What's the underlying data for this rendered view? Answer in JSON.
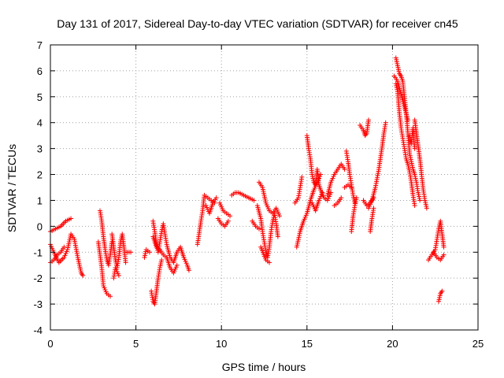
{
  "chart_data": {
    "type": "scatter",
    "title": "Day 131 of 2017, Sidereal Day-to-day VTEC variation (SDTVAR) for receiver cn45",
    "xlabel": "GPS time / hours",
    "ylabel": "SDTVAR / TECUs",
    "xlim": [
      0,
      25
    ],
    "ylim": [
      -4,
      7
    ],
    "xticks": [
      0,
      5,
      10,
      15,
      20,
      25
    ],
    "yticks": [
      -4,
      -3,
      -2,
      -1,
      0,
      1,
      2,
      3,
      4,
      5,
      6,
      7
    ],
    "grid": true,
    "marker": "+",
    "color": "#ff0000",
    "tracks": [
      [
        [
          0.0,
          -0.7
        ],
        [
          0.2,
          -1.0
        ],
        [
          0.5,
          -1.4
        ],
        [
          0.8,
          -1.2
        ],
        [
          1.0,
          -0.9
        ],
        [
          1.2,
          -0.3
        ],
        [
          1.4,
          -0.5
        ],
        [
          1.6,
          -1.2
        ],
        [
          1.8,
          -1.8
        ],
        [
          1.9,
          -1.9
        ]
      ],
      [
        [
          0.0,
          -1.4
        ],
        [
          0.2,
          -1.3
        ],
        [
          0.4,
          -1.1
        ],
        [
          0.6,
          -1.0
        ],
        [
          0.8,
          -0.8
        ]
      ],
      [
        [
          0.0,
          -0.2
        ],
        [
          0.3,
          -0.1
        ],
        [
          0.6,
          0.0
        ],
        [
          0.9,
          0.2
        ],
        [
          1.2,
          0.3
        ]
      ],
      [
        [
          2.8,
          -0.6
        ],
        [
          3.0,
          -1.6
        ],
        [
          3.1,
          -2.3
        ],
        [
          3.3,
          -2.6
        ],
        [
          3.5,
          -2.7
        ]
      ],
      [
        [
          2.9,
          0.6
        ],
        [
          3.0,
          0.2
        ],
        [
          3.1,
          -0.4
        ],
        [
          3.2,
          -0.9
        ],
        [
          3.3,
          -1.3
        ],
        [
          3.4,
          -1.5
        ],
        [
          3.5,
          -1.1
        ],
        [
          3.6,
          -0.6
        ]
      ],
      [
        [
          3.6,
          -0.3
        ],
        [
          3.7,
          -0.8
        ],
        [
          3.8,
          -1.3
        ],
        [
          3.9,
          -1.6
        ],
        [
          4.0,
          -1.2
        ],
        [
          4.1,
          -0.6
        ],
        [
          4.2,
          -0.3
        ],
        [
          4.3,
          -0.8
        ],
        [
          4.4,
          -1.4
        ]
      ],
      [
        [
          3.7,
          -2.0
        ],
        [
          3.8,
          -1.6
        ],
        [
          4.0,
          -1.9
        ]
      ],
      [
        [
          4.5,
          -1.0
        ],
        [
          4.7,
          -1.0
        ]
      ],
      [
        [
          5.5,
          -1.2
        ],
        [
          5.6,
          -0.9
        ],
        [
          5.8,
          -1.0
        ]
      ],
      [
        [
          5.9,
          -2.5
        ],
        [
          6.0,
          -2.9
        ],
        [
          6.1,
          -3.0
        ],
        [
          6.2,
          -2.5
        ],
        [
          6.3,
          -2.0
        ],
        [
          6.4,
          -1.6
        ],
        [
          6.5,
          -1.3
        ]
      ],
      [
        [
          6.0,
          0.2
        ],
        [
          6.1,
          -0.2
        ],
        [
          6.2,
          -0.7
        ],
        [
          6.3,
          -1.0
        ],
        [
          6.4,
          -0.6
        ],
        [
          6.5,
          -0.2
        ],
        [
          6.6,
          0.1
        ],
        [
          6.7,
          -0.3
        ],
        [
          6.8,
          -0.7
        ],
        [
          7.0,
          -1.2
        ],
        [
          7.2,
          -1.4
        ],
        [
          7.4,
          -1.0
        ],
        [
          7.6,
          -0.8
        ],
        [
          7.8,
          -1.2
        ],
        [
          8.0,
          -1.5
        ],
        [
          8.1,
          -1.7
        ]
      ],
      [
        [
          6.0,
          -0.4
        ],
        [
          6.2,
          -0.8
        ],
        [
          6.4,
          -0.9
        ],
        [
          6.6,
          -1.1
        ],
        [
          6.8,
          -1.2
        ],
        [
          7.0,
          -1.6
        ],
        [
          7.2,
          -1.8
        ],
        [
          7.4,
          -1.5
        ]
      ],
      [
        [
          8.6,
          -0.7
        ],
        [
          8.8,
          0.2
        ],
        [
          8.9,
          0.6
        ],
        [
          9.0,
          1.2
        ],
        [
          9.2,
          1.1
        ],
        [
          9.4,
          1.0
        ],
        [
          9.6,
          0.9
        ]
      ],
      [
        [
          9.1,
          0.8
        ],
        [
          9.3,
          0.5
        ],
        [
          9.5,
          0.9
        ],
        [
          9.7,
          1.1
        ]
      ],
      [
        [
          9.9,
          0.9
        ],
        [
          10.1,
          0.6
        ],
        [
          10.3,
          0.5
        ],
        [
          10.5,
          0.4
        ]
      ],
      [
        [
          9.8,
          0.3
        ],
        [
          10.0,
          0.1
        ],
        [
          10.2,
          0.0
        ],
        [
          10.4,
          0.2
        ]
      ],
      [
        [
          10.6,
          1.2
        ],
        [
          10.8,
          1.3
        ],
        [
          11.0,
          1.3
        ],
        [
          11.3,
          1.2
        ],
        [
          11.6,
          1.1
        ],
        [
          11.9,
          1.0
        ]
      ],
      [
        [
          11.8,
          0.2
        ],
        [
          12.0,
          0.0
        ],
        [
          12.2,
          -0.1
        ]
      ],
      [
        [
          12.1,
          0.8
        ],
        [
          12.3,
          0.3
        ],
        [
          12.4,
          -0.2
        ],
        [
          12.5,
          -0.6
        ],
        [
          12.6,
          -1.0
        ],
        [
          12.7,
          -1.2
        ],
        [
          12.8,
          -0.8
        ],
        [
          12.9,
          -0.2
        ],
        [
          13.0,
          0.2
        ],
        [
          13.1,
          0.5
        ],
        [
          13.2,
          0.1
        ],
        [
          13.3,
          -0.4
        ]
      ],
      [
        [
          12.2,
          1.7
        ],
        [
          12.4,
          1.5
        ],
        [
          12.6,
          0.9
        ],
        [
          12.8,
          0.6
        ],
        [
          13.0,
          0.5
        ],
        [
          13.2,
          0.7
        ],
        [
          13.4,
          0.4
        ]
      ],
      [
        [
          12.3,
          -0.8
        ],
        [
          12.6,
          -1.3
        ],
        [
          12.8,
          -1.4
        ]
      ],
      [
        [
          14.3,
          0.9
        ],
        [
          14.5,
          1.1
        ],
        [
          14.6,
          1.5
        ],
        [
          14.7,
          1.9
        ]
      ],
      [
        [
          14.4,
          -0.8
        ],
        [
          14.6,
          -0.2
        ],
        [
          14.8,
          0.2
        ],
        [
          15.0,
          0.5
        ],
        [
          15.2,
          1.0
        ],
        [
          15.4,
          1.4
        ],
        [
          15.6,
          1.7
        ],
        [
          15.8,
          2.0
        ]
      ],
      [
        [
          15.0,
          3.5
        ],
        [
          15.1,
          3.0
        ],
        [
          15.2,
          2.6
        ],
        [
          15.3,
          2.0
        ],
        [
          15.4,
          1.7
        ],
        [
          15.5,
          1.6
        ],
        [
          15.6,
          2.2
        ],
        [
          15.7,
          1.6
        ],
        [
          15.8,
          1.4
        ],
        [
          16.0,
          1.1
        ],
        [
          16.2,
          1.0
        ],
        [
          16.4,
          1.3
        ]
      ],
      [
        [
          15.3,
          0.9
        ],
        [
          15.5,
          0.6
        ],
        [
          15.7,
          1.0
        ],
        [
          15.9,
          1.3
        ]
      ],
      [
        [
          16.2,
          1.2
        ],
        [
          16.4,
          1.7
        ],
        [
          16.6,
          2.0
        ],
        [
          16.8,
          2.2
        ],
        [
          17.0,
          2.4
        ],
        [
          17.2,
          2.2
        ]
      ],
      [
        [
          16.6,
          0.8
        ],
        [
          16.8,
          0.9
        ],
        [
          17.0,
          1.1
        ]
      ],
      [
        [
          17.3,
          2.9
        ],
        [
          17.4,
          2.5
        ],
        [
          17.5,
          2.0
        ],
        [
          17.6,
          1.6
        ],
        [
          17.7,
          1.2
        ],
        [
          17.8,
          0.9
        ]
      ],
      [
        [
          17.2,
          1.5
        ],
        [
          17.4,
          1.6
        ],
        [
          17.6,
          1.5
        ]
      ],
      [
        [
          17.6,
          -0.2
        ],
        [
          17.7,
          0.4
        ],
        [
          17.8,
          0.8
        ],
        [
          17.9,
          1.1
        ]
      ],
      [
        [
          18.1,
          3.9
        ],
        [
          18.3,
          3.7
        ],
        [
          18.4,
          3.5
        ],
        [
          18.5,
          3.6
        ],
        [
          18.6,
          4.1
        ]
      ],
      [
        [
          18.3,
          1.0
        ],
        [
          18.5,
          0.8
        ],
        [
          18.7,
          0.9
        ],
        [
          18.9,
          1.1
        ]
      ],
      [
        [
          18.6,
          0.7
        ],
        [
          18.8,
          1.0
        ],
        [
          19.0,
          1.5
        ],
        [
          19.2,
          2.2
        ],
        [
          19.4,
          3.1
        ],
        [
          19.5,
          3.6
        ],
        [
          19.6,
          4.0
        ]
      ],
      [
        [
          18.7,
          -0.2
        ],
        [
          18.8,
          0.3
        ],
        [
          18.9,
          0.7
        ]
      ],
      [
        [
          20.2,
          6.5
        ],
        [
          20.3,
          6.2
        ],
        [
          20.4,
          5.9
        ],
        [
          20.5,
          5.8
        ],
        [
          20.6,
          5.6
        ],
        [
          20.7,
          5.0
        ],
        [
          20.8,
          4.4
        ],
        [
          20.9,
          3.6
        ],
        [
          21.0,
          2.8
        ],
        [
          21.1,
          2.5
        ],
        [
          21.2,
          2.2
        ],
        [
          21.3,
          2.0
        ],
        [
          21.4,
          1.7
        ],
        [
          21.5,
          1.3
        ],
        [
          21.6,
          1.0
        ]
      ],
      [
        [
          20.2,
          5.5
        ],
        [
          20.3,
          5.2
        ],
        [
          20.4,
          4.4
        ],
        [
          20.5,
          3.8
        ],
        [
          20.6,
          3.4
        ],
        [
          20.7,
          3.0
        ],
        [
          20.8,
          2.6
        ],
        [
          20.9,
          2.4
        ],
        [
          21.0,
          2.1
        ],
        [
          21.1,
          1.7
        ],
        [
          21.2,
          1.2
        ],
        [
          21.3,
          0.8
        ]
      ],
      [
        [
          20.1,
          5.8
        ],
        [
          20.3,
          5.6
        ],
        [
          20.5,
          5.1
        ],
        [
          20.7,
          4.6
        ],
        [
          20.9,
          4.1
        ]
      ],
      [
        [
          21.3,
          4.1
        ],
        [
          21.4,
          3.6
        ],
        [
          21.5,
          3.1
        ],
        [
          21.6,
          2.6
        ],
        [
          21.7,
          2.0
        ],
        [
          21.8,
          1.4
        ],
        [
          21.9,
          1.0
        ],
        [
          22.0,
          0.7
        ]
      ],
      [
        [
          21.0,
          3.5
        ],
        [
          21.1,
          3.2
        ],
        [
          21.2,
          3.8
        ],
        [
          21.3,
          3.0
        ]
      ],
      [
        [
          22.1,
          -1.3
        ],
        [
          22.3,
          -1.1
        ],
        [
          22.5,
          -0.9
        ],
        [
          22.6,
          -0.5
        ],
        [
          22.7,
          -0.1
        ],
        [
          22.8,
          0.2
        ],
        [
          22.9,
          -0.3
        ],
        [
          23.0,
          -0.8
        ]
      ],
      [
        [
          22.4,
          -1.0
        ],
        [
          22.6,
          -1.2
        ],
        [
          22.8,
          -1.3
        ],
        [
          23.0,
          -1.1
        ]
      ],
      [
        [
          22.7,
          -2.9
        ],
        [
          22.8,
          -2.6
        ],
        [
          22.9,
          -2.5
        ]
      ]
    ]
  }
}
